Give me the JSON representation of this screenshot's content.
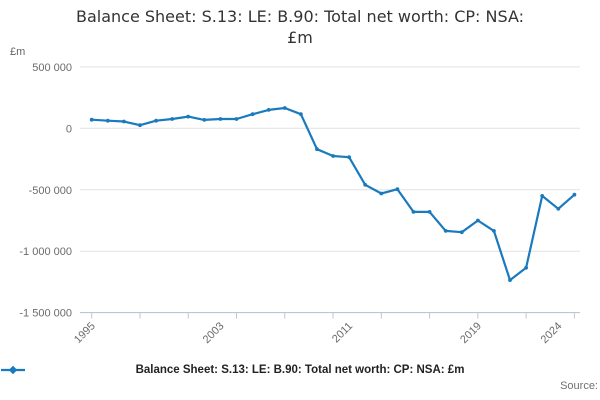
{
  "header": {
    "title_line1": "Balance Sheet: S.13: LE: B.90: Total net worth: CP: NSA:",
    "title_line2": "£m"
  },
  "axes": {
    "unit_label": "£m"
  },
  "chart_data": {
    "type": "line",
    "title": "Balance Sheet: S.13: LE: B.90: Total net worth: CP: NSA: £m",
    "xlabel": "",
    "ylabel": "£m",
    "xlim": [
      1995,
      2025
    ],
    "ylim": [
      -1500000,
      500000
    ],
    "grid": true,
    "legend_position": "bottom",
    "line_color": "#1a7abe",
    "grid_color": "#e2e2e2",
    "axis_color": "#b7c6d8",
    "tick_label_color": "#6b6b6b",
    "x": [
      1995,
      1996,
      1997,
      1998,
      1999,
      2000,
      2001,
      2002,
      2003,
      2004,
      2005,
      2006,
      2007,
      2008,
      2009,
      2010,
      2011,
      2012,
      2013,
      2014,
      2015,
      2016,
      2017,
      2018,
      2019,
      2020,
      2021,
      2022,
      2023,
      2024,
      2025
    ],
    "series": [
      {
        "name": "Balance Sheet: S.13: LE: B.90: Total net worth: CP: NSA: £m",
        "values": [
          70000,
          62000,
          55000,
          25000,
          62000,
          76000,
          95000,
          68000,
          76000,
          76000,
          115000,
          150000,
          165000,
          115000,
          -170000,
          -225000,
          -235000,
          -460000,
          -530000,
          -495000,
          -680000,
          -680000,
          -835000,
          -845000,
          -750000,
          -835000,
          -1235000,
          -1135000,
          -550000,
          -655000,
          -540000
        ]
      }
    ],
    "xticks": [
      1995,
      1998,
      2001,
      2004,
      2007,
      2010,
      2013,
      2016,
      2019,
      2022,
      2025
    ],
    "xtick_labels": [
      {
        "year": 1995,
        "label": "1995"
      },
      {
        "year": 2003,
        "label": "2003"
      },
      {
        "year": 2011,
        "label": "2011"
      },
      {
        "year": 2019,
        "label": "2019"
      },
      {
        "year": 2024,
        "label": "2024"
      }
    ],
    "yticks": [
      {
        "value": 500000,
        "label": "500 000"
      },
      {
        "value": 0,
        "label": "0"
      },
      {
        "value": -500000,
        "label": "-500 000"
      },
      {
        "value": -1000000,
        "label": "-1 000 000"
      },
      {
        "value": -1500000,
        "label": "-1 500 000"
      }
    ]
  },
  "legend": {
    "label": "Balance Sheet: S.13: LE: B.90: Total net worth: CP: NSA: £m"
  },
  "footer": {
    "source_label": "Source:"
  }
}
